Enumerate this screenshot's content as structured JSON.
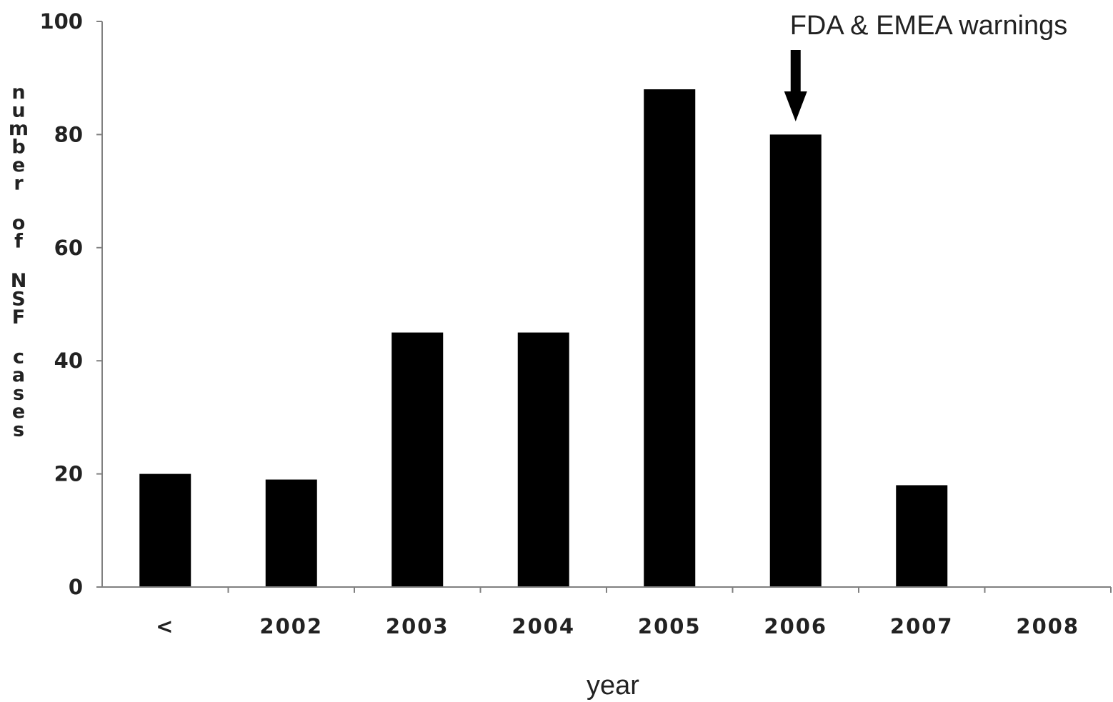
{
  "chart_data": {
    "type": "bar",
    "categories": [
      "<",
      "2002",
      "2003",
      "2004",
      "2005",
      "2006",
      "2007",
      "2008"
    ],
    "values": [
      20,
      19,
      45,
      45,
      88,
      80,
      18,
      0
    ],
    "xlabel": "year",
    "ylabel": "number of NSF cases",
    "ylim": [
      0,
      100
    ],
    "yticks": [
      "0",
      "20",
      "40",
      "60",
      "80",
      "100"
    ],
    "grid": false,
    "bar_color": "#000000",
    "annotation": {
      "text": "FDA & EMEA warnings",
      "category": "2006"
    }
  }
}
